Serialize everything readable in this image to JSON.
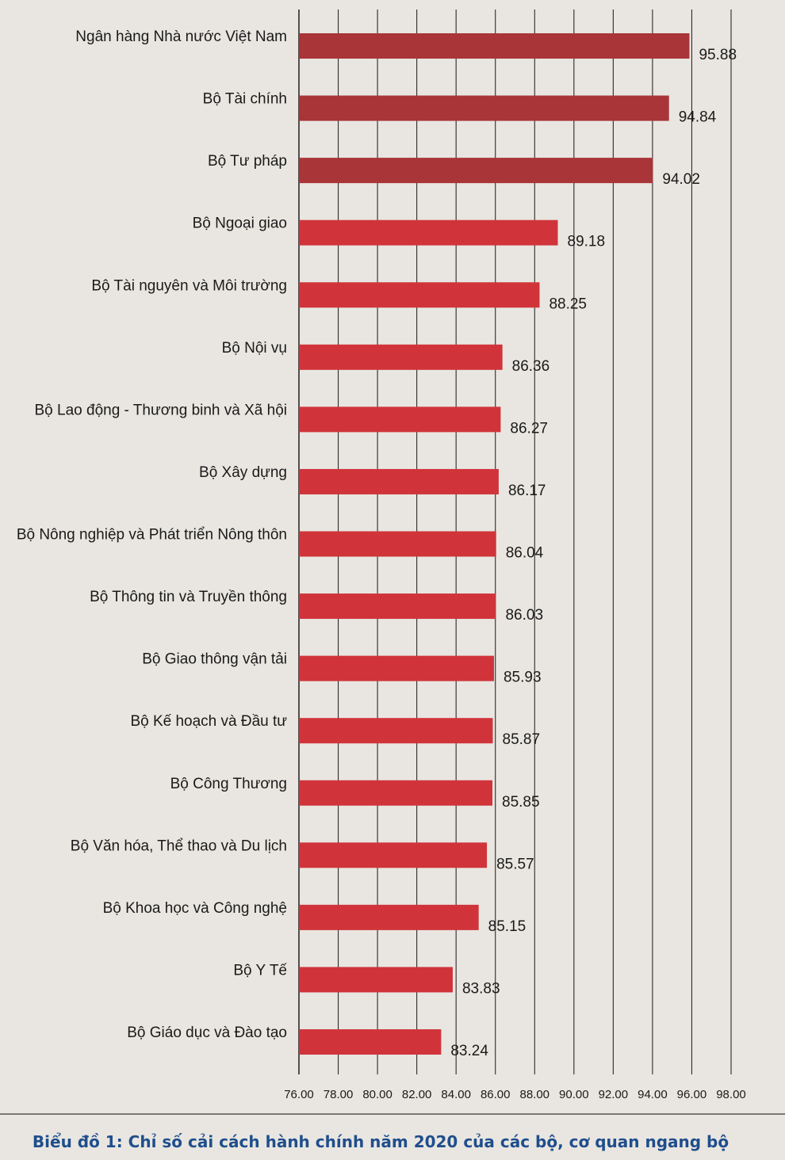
{
  "chart_data": {
    "type": "bar",
    "orientation": "horizontal",
    "title": "Biểu đồ 1: Chỉ số cải cách hành chính năm 2020 của các bộ, cơ quan ngang bộ",
    "categories": [
      "Ngân hàng Nhà nước Việt Nam",
      "Bộ Tài chính",
      "Bộ Tư pháp",
      "Bộ Ngoại giao",
      "Bộ Tài nguyên và Môi trường",
      "Bộ Nội vụ",
      "Bộ Lao động - Thương binh và Xã hội",
      "Bộ Xây dựng",
      "Bộ Nông nghiệp và Phát triển Nông thôn",
      "Bộ Thông tin và Truyền thông",
      "Bộ Giao thông vận tải",
      "Bộ Kế hoạch và Đầu tư",
      "Bộ Công Thương",
      "Bộ Văn hóa, Thể thao và Du lịch",
      "Bộ Khoa học và Công nghệ",
      "Bộ Y Tế",
      "Bộ Giáo dục và Đào tạo"
    ],
    "values": [
      95.88,
      94.84,
      94.02,
      89.18,
      88.25,
      86.36,
      86.27,
      86.17,
      86.04,
      86.03,
      85.93,
      85.87,
      85.85,
      85.57,
      85.15,
      83.83,
      83.24
    ],
    "value_labels": [
      "95.88",
      "94.84",
      "94.02",
      "89.18",
      "88.25",
      "86.36",
      "86.27",
      "86.17",
      "86.04",
      "86.03",
      "85.93",
      "85.87",
      "85.85",
      "85.57",
      "85.15",
      "83.83",
      "83.24"
    ],
    "xlim": [
      76,
      98
    ],
    "xticks": [
      "76.00",
      "78.00",
      "80.00",
      "82.00",
      "84.00",
      "86.00",
      "88.00",
      "90.00",
      "92.00",
      "94.00",
      "96.00",
      "98.00"
    ],
    "grid": "vertical",
    "colors": {
      "top3": "#a93538",
      "others": "#d0343a",
      "caption": "#1f4e8c",
      "grid": "#2a2a2a"
    }
  }
}
